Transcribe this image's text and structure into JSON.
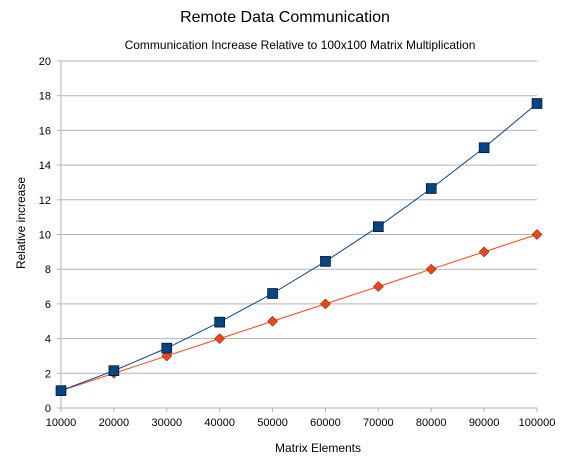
{
  "chart_data": {
    "type": "line",
    "title": "Remote Data Communication",
    "subtitle": "Communication Increase Relative to 100x100 Matrix Multiplication",
    "xlabel": "Matrix Elements",
    "ylabel": "Relative increase",
    "x": [
      10000,
      20000,
      30000,
      40000,
      50000,
      60000,
      70000,
      80000,
      90000,
      100000
    ],
    "x_tick_labels": [
      "10000",
      "20000",
      "30000",
      "40000",
      "50000",
      "60000",
      "70000",
      "80000",
      "90000",
      "100000"
    ],
    "ylim": [
      0,
      20
    ],
    "y_ticks": [
      0,
      2,
      4,
      6,
      8,
      10,
      12,
      14,
      16,
      18,
      20
    ],
    "grid": true,
    "legend": "none",
    "series": [
      {
        "marker": "square",
        "color": "#004586",
        "values": [
          1,
          2.15,
          3.45,
          4.95,
          6.6,
          8.45,
          10.45,
          12.65,
          15.0,
          17.55
        ]
      },
      {
        "marker": "diamond",
        "color": "#ff420e",
        "values": [
          1,
          2,
          3,
          4,
          5,
          6,
          7,
          8,
          9,
          10
        ]
      }
    ]
  }
}
